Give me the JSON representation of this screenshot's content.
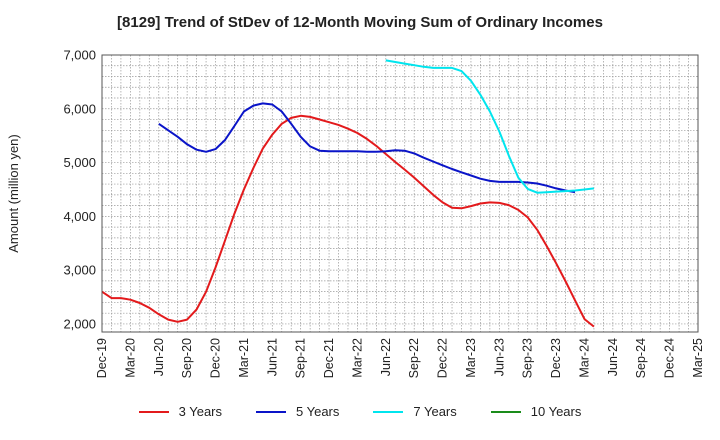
{
  "chart_data": {
    "type": "line",
    "title": "[8129]  Trend of StDev of 12-Month Moving Sum of Ordinary Incomes",
    "ylabel": "Amount (million yen)",
    "xlabel": "",
    "ylim": [
      1850,
      7000
    ],
    "y_ticks": [
      "2,000",
      "3,000",
      "4,000",
      "5,000",
      "6,000",
      "7,000"
    ],
    "y_tick_values": [
      2000,
      3000,
      4000,
      5000,
      6000,
      7000
    ],
    "x_tick_labels": [
      "Dec-19",
      "Mar-20",
      "Jun-20",
      "Sep-20",
      "Dec-20",
      "Mar-21",
      "Jun-21",
      "Sep-21",
      "Dec-21",
      "Mar-22",
      "Jun-22",
      "Sep-22",
      "Dec-22",
      "Mar-23",
      "Jun-23",
      "Sep-23",
      "Dec-23",
      "Mar-24",
      "Jun-24",
      "Sep-24",
      "Dec-24",
      "Mar-25"
    ],
    "grid": true,
    "legend_position": "bottom",
    "series": [
      {
        "name": "3 Years",
        "color": "#e31a1c",
        "start_index": 0,
        "values": [
          2600,
          2480,
          2480,
          2450,
          2390,
          2300,
          2180,
          2080,
          2040,
          2080,
          2270,
          2600,
          3050,
          3550,
          4050,
          4500,
          4900,
          5260,
          5520,
          5720,
          5830,
          5870,
          5850,
          5800,
          5750,
          5700,
          5630,
          5550,
          5440,
          5310,
          5160,
          5010,
          4870,
          4720,
          4560,
          4400,
          4260,
          4160,
          4150,
          4190,
          4240,
          4260,
          4250,
          4210,
          4120,
          3980,
          3750,
          3450,
          3130,
          2790,
          2440,
          2090,
          1950
        ]
      },
      {
        "name": "5 Years",
        "color": "#0a14c8",
        "start_index": 6,
        "values": [
          5720,
          5600,
          5480,
          5340,
          5240,
          5200,
          5250,
          5420,
          5680,
          5950,
          6060,
          6100,
          6080,
          5950,
          5720,
          5480,
          5300,
          5220,
          5210,
          5210,
          5210,
          5210,
          5200,
          5200,
          5210,
          5230,
          5220,
          5170,
          5090,
          5020,
          4950,
          4880,
          4820,
          4760,
          4700,
          4660,
          4640,
          4640,
          4640,
          4630,
          4610,
          4570,
          4520,
          4480,
          4450
        ]
      },
      {
        "name": "7 Years",
        "color": "#00e5ee",
        "start_index": 30,
        "values": [
          6900,
          6870,
          6840,
          6810,
          6780,
          6760,
          6760,
          6760,
          6700,
          6520,
          6260,
          5950,
          5580,
          5130,
          4720,
          4510,
          4440,
          4450,
          4460,
          4470,
          4480,
          4500,
          4520
        ]
      },
      {
        "name": "10 Years",
        "color": "#1a8c1a",
        "start_index": 0,
        "values": []
      }
    ]
  }
}
